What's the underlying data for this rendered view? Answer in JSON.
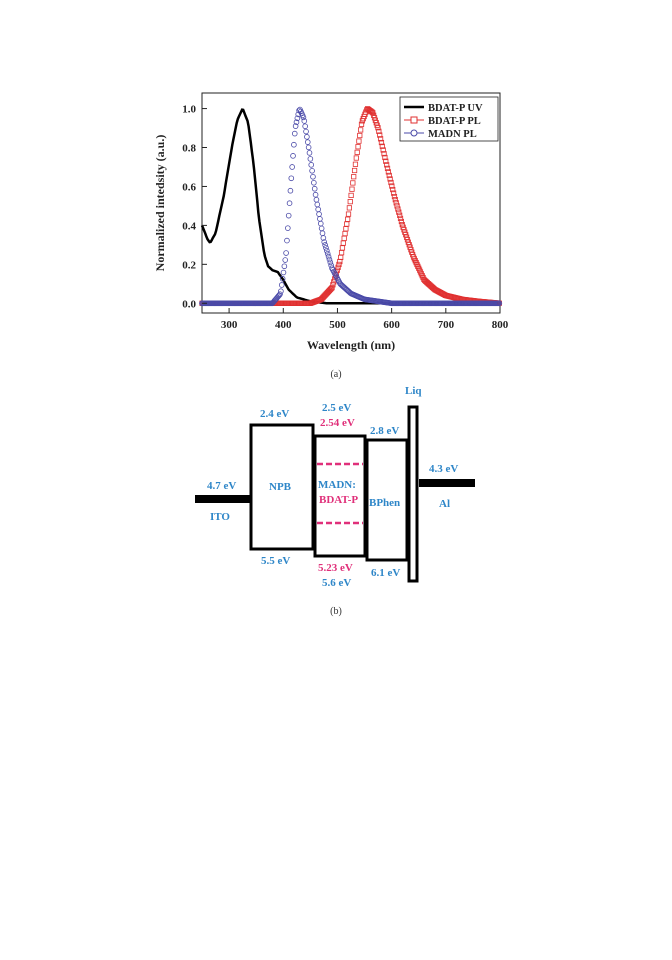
{
  "chart_data": {
    "type": "line",
    "xlabel": "Wavelength (nm)",
    "ylabel": "Normalized intedsity (a.u.)",
    "xlim": [
      250,
      800
    ],
    "ylim": [
      -0.05,
      1.08
    ],
    "xticks": [
      300,
      400,
      500,
      600,
      700,
      800
    ],
    "yticks": [
      0.0,
      0.2,
      0.4,
      0.6,
      0.8,
      1.0
    ],
    "legend_position": "top-right",
    "series": [
      {
        "name": "BDAT-P UV",
        "color": "#000000",
        "marker": "none",
        "points": [
          [
            250,
            0.4
          ],
          [
            260,
            0.33
          ],
          [
            265,
            0.31
          ],
          [
            275,
            0.36
          ],
          [
            290,
            0.55
          ],
          [
            305,
            0.8
          ],
          [
            315,
            0.94
          ],
          [
            325,
            1.0
          ],
          [
            335,
            0.93
          ],
          [
            345,
            0.72
          ],
          [
            355,
            0.44
          ],
          [
            365,
            0.25
          ],
          [
            372,
            0.19
          ],
          [
            380,
            0.17
          ],
          [
            390,
            0.16
          ],
          [
            400,
            0.12
          ],
          [
            410,
            0.07
          ],
          [
            425,
            0.03
          ],
          [
            450,
            0.01
          ],
          [
            480,
            0.0
          ],
          [
            500,
            0.0
          ],
          [
            800,
            0.0
          ]
        ]
      },
      {
        "name": "BDAT-P PL",
        "color": "#e03030",
        "marker": "square",
        "points": [
          [
            250,
            0.0
          ],
          [
            450,
            0.0
          ],
          [
            470,
            0.02
          ],
          [
            490,
            0.08
          ],
          [
            505,
            0.22
          ],
          [
            520,
            0.45
          ],
          [
            535,
            0.75
          ],
          [
            545,
            0.93
          ],
          [
            555,
            1.0
          ],
          [
            565,
            0.98
          ],
          [
            575,
            0.9
          ],
          [
            590,
            0.72
          ],
          [
            605,
            0.55
          ],
          [
            620,
            0.4
          ],
          [
            640,
            0.24
          ],
          [
            660,
            0.12
          ],
          [
            680,
            0.07
          ],
          [
            700,
            0.04
          ],
          [
            730,
            0.02
          ],
          [
            760,
            0.01
          ],
          [
            800,
            0.0
          ]
        ]
      },
      {
        "name": "MADN PL",
        "color": "#4a4aa8",
        "marker": "circle",
        "points": [
          [
            250,
            0.0
          ],
          [
            380,
            0.0
          ],
          [
            395,
            0.05
          ],
          [
            405,
            0.25
          ],
          [
            415,
            0.65
          ],
          [
            422,
            0.9
          ],
          [
            430,
            1.0
          ],
          [
            438,
            0.95
          ],
          [
            448,
            0.78
          ],
          [
            460,
            0.55
          ],
          [
            475,
            0.32
          ],
          [
            490,
            0.18
          ],
          [
            505,
            0.1
          ],
          [
            525,
            0.05
          ],
          [
            550,
            0.02
          ],
          [
            600,
            0.0
          ],
          [
            800,
            0.0
          ]
        ]
      }
    ]
  },
  "captions": {
    "a": "(a)",
    "b": "(b)"
  },
  "energy_diagram": {
    "left_electrode": {
      "name": "ITO",
      "level": "4.7 eV"
    },
    "right_electrode": {
      "name": "Al",
      "level": "4.3 eV"
    },
    "layers": [
      {
        "name": "NPB",
        "lumo": "2.4 eV",
        "homo": "5.5 eV"
      },
      {
        "name_line1": "MADN:",
        "name_line2": "BDAT-P",
        "lumo": "2.5 eV",
        "lumo_dopant": "2.54 eV",
        "homo_dopant": "5.23 eV",
        "homo": "5.6 eV"
      },
      {
        "name": "BPhen",
        "lumo": "2.8 eV",
        "homo": "6.1 eV"
      },
      {
        "name": "Liq"
      }
    ],
    "colors": {
      "host_text": "#2e86c8",
      "dopant_text": "#e0307a"
    }
  }
}
